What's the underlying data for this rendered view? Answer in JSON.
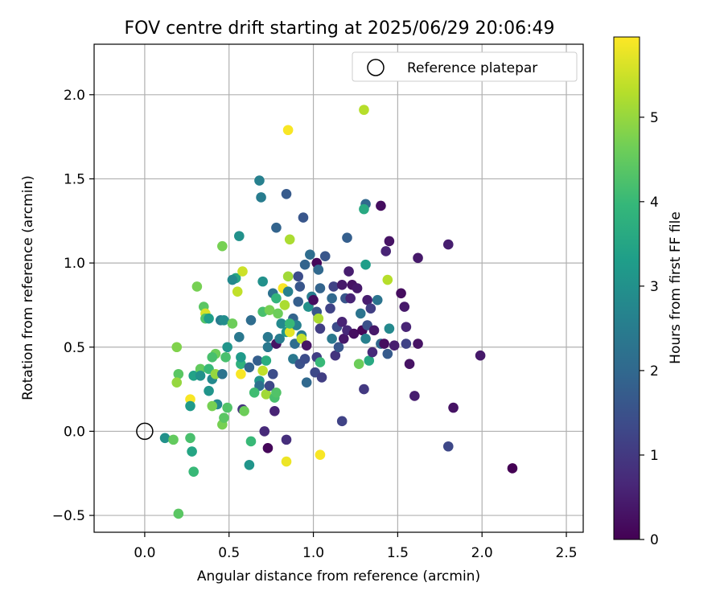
{
  "chart_data": {
    "type": "scatter",
    "title": "FOV centre drift starting at 2025/06/29 20:06:49",
    "xlabel": "Angular distance from reference (arcmin)",
    "ylabel": "Rotation from reference (arcmin)",
    "xlim": [
      -0.3,
      2.6
    ],
    "ylim": [
      -0.6,
      2.3
    ],
    "xticks": [
      "0.0",
      "0.5",
      "1.0",
      "1.5",
      "2.0",
      "2.5"
    ],
    "xtick_values": [
      0.0,
      0.5,
      1.0,
      1.5,
      2.0,
      2.5
    ],
    "yticks": [
      "−0.5",
      "0.0",
      "0.5",
      "1.0",
      "1.5",
      "2.0"
    ],
    "ytick_values": [
      -0.5,
      0.0,
      0.5,
      1.0,
      1.5,
      2.0
    ],
    "grid": true,
    "legend": {
      "position": "top-right",
      "label": "Reference platepar"
    },
    "reference_point": {
      "x": 0.0,
      "y": 0.0
    },
    "colorbar": {
      "label": "Hours from first FF file",
      "range": [
        0,
        5.95
      ],
      "ticks": [
        "0",
        "1",
        "2",
        "3",
        "4",
        "5"
      ],
      "tick_values": [
        0,
        1,
        2,
        3,
        4,
        5
      ],
      "colormap": "viridis",
      "colors": [
        "#440154",
        "#482878",
        "#3e4989",
        "#31688e",
        "#26828e",
        "#1f9e89",
        "#35b779",
        "#6ece58",
        "#b5de2b",
        "#fde725"
      ]
    },
    "series": [
      {
        "points": [
          [
            0.85,
            1.79,
            5.9
          ],
          [
            1.3,
            1.91,
            5.3
          ],
          [
            0.2,
            -0.49,
            4.4
          ],
          [
            2.18,
            -0.22,
            0.0
          ],
          [
            1.8,
            -0.09,
            1.3
          ],
          [
            1.83,
            0.14,
            0.3
          ],
          [
            1.99,
            0.45,
            0.4
          ],
          [
            1.8,
            1.11,
            0.5
          ],
          [
            1.62,
            1.03,
            0.4
          ],
          [
            1.45,
            1.13,
            0.3
          ],
          [
            1.4,
            1.34,
            0.2
          ],
          [
            1.31,
            1.35,
            2.0
          ],
          [
            1.3,
            1.32,
            3.6
          ],
          [
            0.84,
            1.41,
            1.7
          ],
          [
            0.68,
            1.49,
            2.6
          ],
          [
            0.69,
            1.39,
            2.5
          ],
          [
            0.94,
            1.27,
            1.6
          ],
          [
            0.78,
            1.21,
            1.9
          ],
          [
            0.56,
            1.16,
            3.0
          ],
          [
            0.46,
            1.1,
            4.7
          ],
          [
            0.86,
            1.14,
            5.2
          ],
          [
            1.2,
            1.15,
            1.8
          ],
          [
            0.31,
            0.86,
            4.7
          ],
          [
            0.54,
            0.91,
            3.5
          ],
          [
            0.58,
            0.95,
            5.5
          ],
          [
            0.55,
            0.83,
            5.4
          ],
          [
            0.7,
            0.89,
            3.0
          ],
          [
            0.35,
            0.74,
            4.4
          ],
          [
            0.36,
            0.7,
            5.6
          ],
          [
            0.36,
            0.67,
            4.3
          ],
          [
            0.38,
            0.67,
            3.3
          ],
          [
            0.45,
            0.66,
            2.5
          ],
          [
            0.47,
            0.66,
            2.9
          ],
          [
            0.52,
            0.64,
            4.6
          ],
          [
            0.49,
            0.5,
            3.1
          ],
          [
            0.42,
            0.46,
            4.6
          ],
          [
            0.48,
            0.44,
            4.2
          ],
          [
            0.19,
            0.5,
            4.8
          ],
          [
            0.2,
            0.34,
            4.4
          ],
          [
            0.19,
            0.29,
            5.0
          ],
          [
            0.27,
            0.19,
            5.9
          ],
          [
            0.27,
            0.15,
            3.2
          ],
          [
            0.29,
            0.33,
            3.4
          ],
          [
            0.33,
            0.37,
            4.5
          ],
          [
            0.38,
            0.37,
            4.0
          ],
          [
            0.38,
            0.24,
            3.1
          ],
          [
            0.4,
            0.31,
            2.8
          ],
          [
            0.42,
            0.34,
            5.0
          ],
          [
            0.43,
            0.16,
            2.8
          ],
          [
            0.4,
            0.15,
            4.7
          ],
          [
            0.46,
            0.34,
            2.3
          ],
          [
            0.46,
            0.04,
            4.7
          ],
          [
            0.47,
            0.08,
            4.4
          ],
          [
            0.49,
            0.14,
            4.3
          ],
          [
            0.57,
            0.4,
            3.8
          ],
          [
            0.57,
            0.44,
            3.2
          ],
          [
            0.56,
            0.56,
            2.4
          ],
          [
            0.57,
            0.34,
            5.9
          ],
          [
            0.58,
            0.13,
            0.9
          ],
          [
            0.59,
            0.12,
            4.6
          ],
          [
            0.62,
            0.38,
            1.9
          ],
          [
            0.63,
            0.66,
            2.1
          ],
          [
            0.67,
            0.42,
            1.8
          ],
          [
            0.68,
            0.3,
            3.1
          ],
          [
            0.68,
            0.27,
            2.2
          ],
          [
            0.7,
            0.36,
            5.4
          ],
          [
            0.7,
            0.71,
            4.2
          ],
          [
            0.72,
            0.22,
            5.1
          ],
          [
            0.72,
            0.42,
            3.7
          ],
          [
            0.73,
            0.5,
            2.4
          ],
          [
            0.73,
            0.56,
            2.4
          ],
          [
            0.74,
            0.27,
            1.3
          ],
          [
            0.74,
            0.72,
            4.7
          ],
          [
            0.76,
            0.82,
            2.2
          ],
          [
            0.76,
            0.34,
            1.4
          ],
          [
            0.77,
            0.12,
            0.6
          ],
          [
            0.77,
            0.2,
            4.2
          ],
          [
            0.78,
            0.23,
            4.3
          ],
          [
            0.78,
            0.52,
            0.3
          ],
          [
            0.78,
            0.79,
            3.9
          ],
          [
            0.79,
            0.7,
            4.6
          ],
          [
            0.8,
            0.55,
            2.5
          ],
          [
            0.81,
            0.64,
            2.8
          ],
          [
            0.82,
            0.85,
            5.9
          ],
          [
            0.83,
            0.75,
            5.2
          ],
          [
            0.84,
            0.59,
            3.1
          ],
          [
            0.85,
            0.83,
            2.6
          ],
          [
            0.85,
            0.92,
            5.1
          ],
          [
            0.86,
            0.59,
            5.7
          ],
          [
            0.88,
            0.67,
            1.9
          ],
          [
            0.88,
            0.43,
            2.4
          ],
          [
            0.89,
            0.52,
            2.1
          ],
          [
            0.9,
            0.63,
            2.6
          ],
          [
            0.91,
            0.92,
            1.4
          ],
          [
            0.91,
            0.77,
            1.8
          ],
          [
            0.92,
            0.86,
            1.6
          ],
          [
            0.92,
            0.4,
            1.5
          ],
          [
            0.93,
            0.57,
            2.5
          ],
          [
            0.93,
            0.55,
            5.4
          ],
          [
            0.95,
            0.99,
            1.9
          ],
          [
            0.95,
            0.43,
            1.4
          ],
          [
            0.96,
            0.51,
            0.3
          ],
          [
            0.96,
            0.29,
            2.0
          ],
          [
            0.97,
            0.74,
            3.0
          ],
          [
            0.98,
            1.05,
            2.1
          ],
          [
            0.99,
            0.8,
            2.5
          ],
          [
            1.0,
            0.78,
            0.2
          ],
          [
            1.01,
            0.35,
            1.3
          ],
          [
            1.02,
            0.44,
            1.1
          ],
          [
            1.02,
            0.71,
            1.6
          ],
          [
            1.02,
            1.0,
            0.1
          ],
          [
            1.03,
            0.96,
            2.0
          ],
          [
            1.03,
            0.67,
            5.2
          ],
          [
            1.04,
            0.61,
            1.1
          ],
          [
            1.04,
            0.41,
            4.0
          ],
          [
            1.04,
            0.85,
            1.9
          ],
          [
            1.05,
            0.32,
            1.1
          ],
          [
            1.07,
            1.04,
            1.6
          ],
          [
            1.1,
            0.73,
            1.2
          ],
          [
            1.11,
            0.79,
            2.0
          ],
          [
            1.11,
            0.55,
            2.4
          ],
          [
            1.12,
            0.86,
            1.2
          ],
          [
            1.13,
            0.45,
            0.9
          ],
          [
            1.14,
            0.62,
            1.4
          ],
          [
            1.15,
            0.5,
            1.6
          ],
          [
            1.17,
            0.87,
            0.4
          ],
          [
            1.17,
            0.65,
            0.6
          ],
          [
            1.17,
            0.06,
            1.2
          ],
          [
            1.18,
            0.55,
            0.4
          ],
          [
            1.19,
            0.79,
            1.6
          ],
          [
            1.2,
            0.6,
            0.7
          ],
          [
            1.21,
            0.95,
            0.5
          ],
          [
            1.22,
            0.79,
            0.6
          ],
          [
            1.23,
            0.87,
            0.3
          ],
          [
            1.24,
            0.58,
            0.2
          ],
          [
            1.26,
            0.85,
            0.4
          ],
          [
            1.27,
            0.4,
            4.6
          ],
          [
            1.28,
            0.7,
            2.3
          ],
          [
            1.29,
            0.6,
            0.1
          ],
          [
            1.3,
            0.25,
            1.0
          ],
          [
            1.31,
            0.55,
            2.6
          ],
          [
            1.31,
            0.99,
            3.3
          ],
          [
            1.32,
            0.63,
            1.5
          ],
          [
            1.32,
            0.78,
            0.5
          ],
          [
            1.33,
            0.42,
            3.6
          ],
          [
            1.34,
            0.73,
            1.1
          ],
          [
            1.35,
            0.47,
            0.7
          ],
          [
            1.36,
            0.6,
            0.4
          ],
          [
            1.38,
            0.78,
            2.3
          ],
          [
            1.4,
            0.52,
            2.0
          ],
          [
            1.42,
            0.52,
            0.2
          ],
          [
            1.43,
            1.07,
            0.6
          ],
          [
            1.44,
            0.46,
            1.7
          ],
          [
            1.44,
            0.9,
            5.3
          ],
          [
            1.45,
            0.61,
            2.8
          ],
          [
            1.48,
            0.51,
            0.5
          ],
          [
            1.52,
            0.82,
            0.2
          ],
          [
            1.54,
            0.74,
            0.4
          ],
          [
            1.55,
            0.62,
            0.6
          ],
          [
            1.55,
            0.52,
            1.2
          ],
          [
            1.57,
            0.4,
            0.3
          ],
          [
            1.6,
            0.21,
            0.5
          ],
          [
            1.62,
            0.52,
            0.3
          ],
          [
            0.12,
            -0.04,
            3.0
          ],
          [
            0.17,
            -0.05,
            4.5
          ],
          [
            0.27,
            -0.04,
            4.2
          ],
          [
            0.28,
            -0.12,
            3.5
          ],
          [
            0.29,
            -0.24,
            4.0
          ],
          [
            0.62,
            -0.2,
            3.1
          ],
          [
            0.63,
            -0.06,
            4.0
          ],
          [
            0.71,
            0.0,
            0.7
          ],
          [
            0.73,
            -0.1,
            0.1
          ],
          [
            0.84,
            -0.18,
            5.8
          ],
          [
            0.84,
            -0.05,
            0.8
          ],
          [
            1.04,
            -0.14,
            5.9
          ],
          [
            0.52,
            0.9,
            2.8
          ],
          [
            0.4,
            0.44,
            4.2
          ],
          [
            0.65,
            0.23,
            4.1
          ],
          [
            0.33,
            0.33,
            3.0
          ],
          [
            0.86,
            0.64,
            4.0
          ]
        ]
      }
    ]
  }
}
